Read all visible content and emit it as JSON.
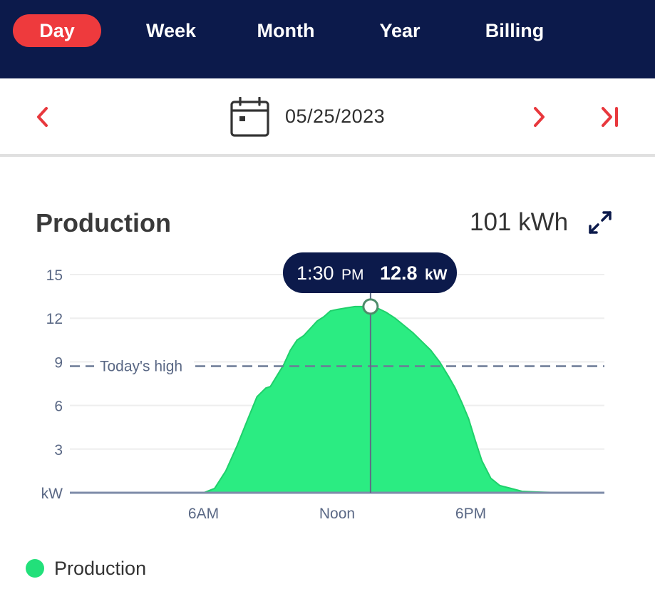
{
  "tabs": [
    {
      "label": "Day",
      "active": true
    },
    {
      "label": "Week",
      "active": false
    },
    {
      "label": "Month",
      "active": false
    },
    {
      "label": "Year",
      "active": false
    },
    {
      "label": "Billing",
      "active": false
    }
  ],
  "date_nav": {
    "date": "05/25/2023",
    "icons": {
      "prev": "chevron-left-icon",
      "calendar": "calendar-icon",
      "next": "chevron-right-icon",
      "last": "skip-to-end-icon"
    }
  },
  "production": {
    "title": "Production",
    "total": "101 kWh",
    "expand_icon": "expand-icon"
  },
  "tooltip": {
    "time": "1:30",
    "ampm": "PM",
    "value": "12.8",
    "unit": "kW"
  },
  "legend": {
    "label": "Production",
    "color": "#22e07a"
  },
  "colors": {
    "header_bg": "#0c1a4b",
    "accent": "#ee3a3d",
    "series_fill": "#22e07a",
    "tooltip_bg": "#0c1a4b"
  },
  "chart_data": {
    "type": "area",
    "x_unit": "hour of day",
    "xlim": [
      0,
      24
    ],
    "ylim": [
      0,
      15
    ],
    "y_ticks": [
      "kW",
      "3",
      "6",
      "9",
      "12",
      "15"
    ],
    "x_ticks": [
      {
        "hour": 6,
        "label": "6AM"
      },
      {
        "hour": 12,
        "label": "Noon"
      },
      {
        "hour": 18,
        "label": "6PM"
      }
    ],
    "reference_line": {
      "label": "Today's high",
      "value": 8.7
    },
    "series": [
      {
        "name": "Production",
        "x": [
          0,
          6.0,
          6.5,
          7.0,
          7.5,
          8.0,
          8.4,
          8.8,
          9.0,
          9.4,
          9.6,
          9.9,
          10.2,
          10.5,
          10.8,
          11.1,
          11.4,
          11.7,
          12.0,
          12.4,
          12.8,
          13.2,
          13.5,
          13.8,
          14.2,
          14.6,
          15.0,
          15.4,
          15.8,
          16.2,
          16.6,
          17.0,
          17.3,
          17.6,
          17.9,
          18.2,
          18.5,
          18.9,
          19.3,
          19.8,
          20.3,
          21.0,
          22.3
        ],
        "y": [
          0,
          0,
          0.3,
          1.5,
          3.2,
          5.1,
          6.6,
          7.2,
          7.3,
          8.3,
          8.8,
          9.8,
          10.5,
          10.8,
          11.3,
          11.8,
          12.1,
          12.5,
          12.6,
          12.7,
          12.8,
          12.8,
          12.8,
          12.7,
          12.4,
          12.0,
          11.5,
          11.0,
          10.4,
          9.8,
          9.0,
          8.0,
          7.2,
          6.2,
          5.1,
          3.6,
          2.2,
          1.0,
          0.5,
          0.3,
          0.1,
          0.05,
          0
        ],
        "highlight": {
          "x": 13.5,
          "y": 12.8
        }
      }
    ]
  }
}
